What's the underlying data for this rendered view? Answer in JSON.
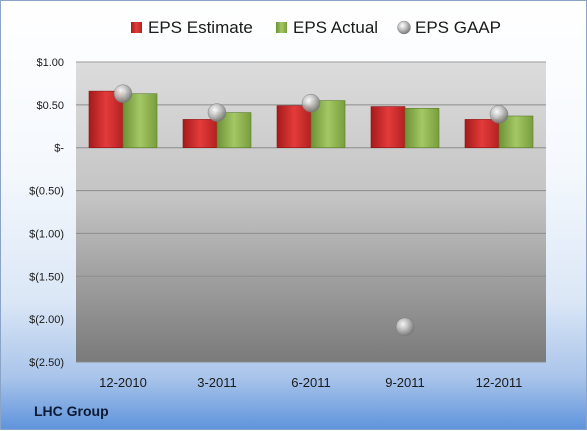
{
  "chart_data": {
    "type": "bar",
    "categories": [
      "12-2010",
      "3-2011",
      "6-2011",
      "9-2011",
      "12-2011"
    ],
    "series": [
      {
        "name": "EPS Estimate",
        "kind": "bar",
        "color": "#cc2a2a",
        "values": [
          0.66,
          0.33,
          0.49,
          0.48,
          0.33
        ]
      },
      {
        "name": "EPS Actual",
        "kind": "bar",
        "color": "#8ab04a",
        "values": [
          0.63,
          0.41,
          0.55,
          0.46,
          0.37
        ]
      },
      {
        "name": "EPS GAAP",
        "kind": "marker",
        "color": "#b8b8b8",
        "values": [
          0.63,
          0.41,
          0.52,
          -2.09,
          0.39
        ]
      }
    ],
    "yticks": [
      1.0,
      0.5,
      0.0,
      -0.5,
      -1.0,
      -1.5,
      -2.0,
      -2.5
    ],
    "yticklabels": [
      "$1.00",
      "$0.50",
      "$-",
      "$(0.50)",
      "$(1.00)",
      "$(1.50)",
      "$(2.00)",
      "$(2.50)"
    ],
    "ylim": [
      -2.5,
      1.0
    ],
    "grid": true,
    "legend_position": "top"
  },
  "footer": {
    "company": "LHC Group"
  }
}
